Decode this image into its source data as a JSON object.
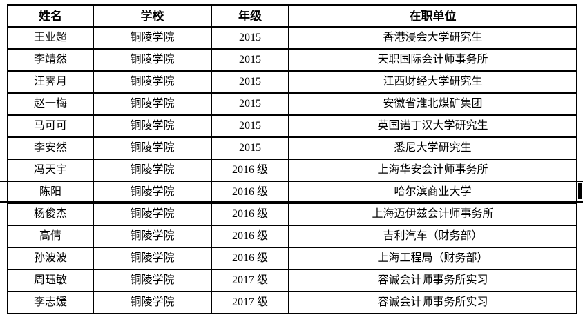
{
  "document": {
    "colors": {
      "background": "#ffffff",
      "border": "#000000",
      "text": "#000000"
    },
    "table": {
      "headers": {
        "name": "姓名",
        "school": "学校",
        "grade": "年级",
        "employer": "在职单位"
      },
      "rows": [
        {
          "name": "王业超",
          "school": "铜陵学院",
          "grade": "2015",
          "employer": "香港浸会大学研究生"
        },
        {
          "name": "李靖然",
          "school": "铜陵学院",
          "grade": "2015",
          "employer": "天职国际会计师事务所"
        },
        {
          "name": "汪霁月",
          "school": "铜陵学院",
          "grade": "2015",
          "employer": "江西财经大学研究生"
        },
        {
          "name": "赵一梅",
          "school": "铜陵学院",
          "grade": "2015",
          "employer": "安徽省淮北煤矿集团"
        },
        {
          "name": "马可可",
          "school": "铜陵学院",
          "grade": "2015",
          "employer": "英国诺丁汉大学研究生"
        },
        {
          "name": "李安然",
          "school": "铜陵学院",
          "grade": "2015",
          "employer": "悉尼大学研究生"
        },
        {
          "name": "冯天宇",
          "school": "铜陵学院",
          "grade": "2016 级",
          "employer": "上海华安会计师事务所"
        },
        {
          "name": "陈阳",
          "school": "铜陵学院",
          "grade": "2016 级",
          "employer": "哈尔滨商业大学"
        },
        {
          "name": "杨俊杰",
          "school": "铜陵学院",
          "grade": "2016 级",
          "employer": "上海迈伊兹会计师事务所"
        },
        {
          "name": "高倩",
          "school": "铜陵学院",
          "grade": "2016 级",
          "employer": "吉利汽车（财务部）"
        },
        {
          "name": "孙波波",
          "school": "铜陵学院",
          "grade": "2016 级",
          "employer": "上海工程局（财务部）"
        },
        {
          "name": "周珏敏",
          "school": "铜陵学院",
          "grade": "2017 级",
          "employer": "容诚会计师事务所实习"
        },
        {
          "name": "李志媛",
          "school": "铜陵学院",
          "grade": "2017 级",
          "employer": "容诚会计师事务所实习"
        }
      ]
    }
  }
}
